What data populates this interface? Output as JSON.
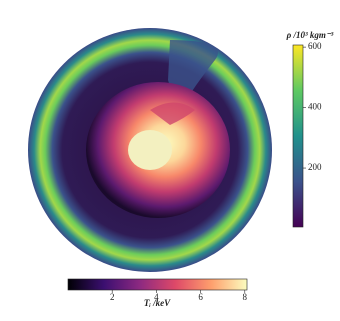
{
  "chart_data": [
    {
      "type": "colorbar",
      "orientation": "vertical",
      "label": "ρ /10³ kgm⁻³",
      "ylim": [
        5,
        607
      ],
      "yticks": [
        200,
        400,
        600
      ],
      "colors": [
        "#440154",
        "#3b528b",
        "#21918c",
        "#5ec962",
        "#fde725"
      ]
    },
    {
      "type": "colorbar",
      "orientation": "horizontal",
      "label": "Tᵢ /keV",
      "xlim": [
        0,
        8.1
      ],
      "xticks": [
        2,
        4,
        6,
        8
      ],
      "colors": [
        "#000004",
        "#3b0f70",
        "#8c2981",
        "#de4968",
        "#fe9f6d",
        "#fcfdbf"
      ]
    }
  ]
}
